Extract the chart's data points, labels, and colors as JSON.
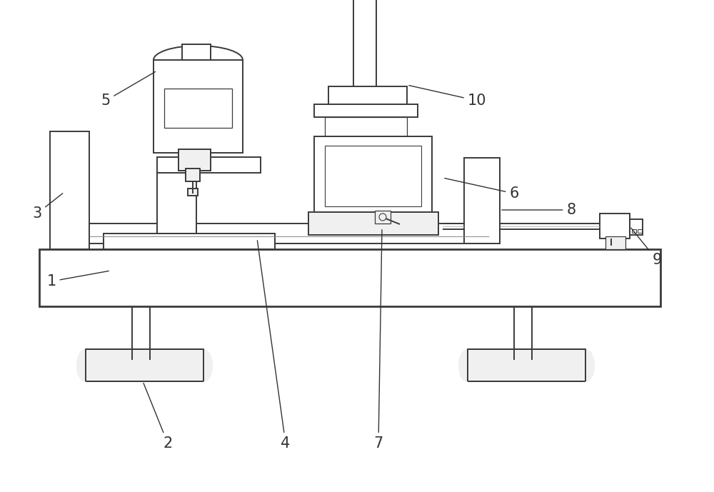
{
  "bg_color": "#ffffff",
  "line_color": "#3a3a3a",
  "lw": 1.4,
  "figsize": [
    10.0,
    6.89
  ],
  "dpi": 100
}
